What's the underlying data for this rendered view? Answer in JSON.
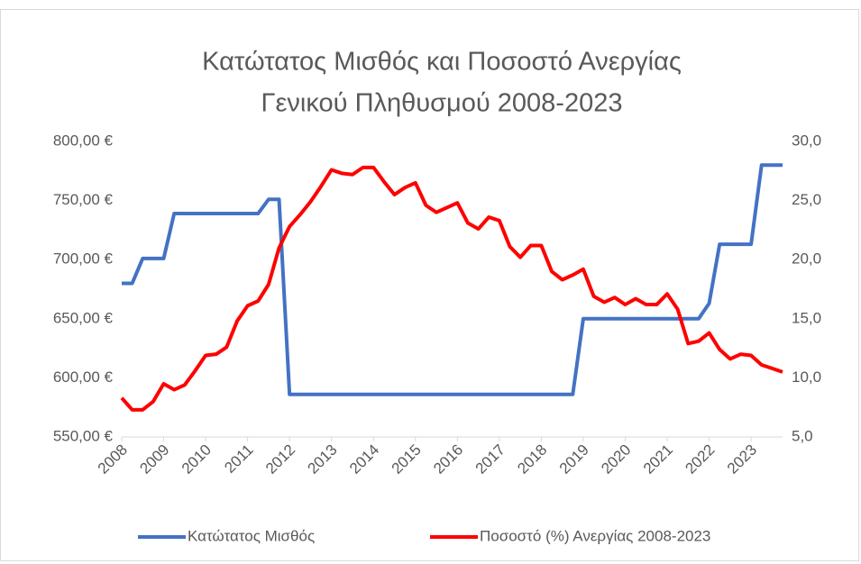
{
  "chart_data": {
    "type": "line",
    "title": [
      "Κατώτατος Μισθός και Ποσοστό Ανεργίας",
      "Γενικού Πληθυσμού 2008-2023"
    ],
    "x": [
      2008,
      2008.25,
      2008.5,
      2008.75,
      2009,
      2009.25,
      2009.5,
      2009.75,
      2010,
      2010.25,
      2010.5,
      2010.75,
      2011,
      2011.25,
      2011.5,
      2011.75,
      2012,
      2012.25,
      2012.5,
      2012.75,
      2013,
      2013.25,
      2013.5,
      2013.75,
      2014,
      2014.25,
      2014.5,
      2014.75,
      2015,
      2015.25,
      2015.5,
      2015.75,
      2016,
      2016.25,
      2016.5,
      2016.75,
      2017,
      2017.25,
      2017.5,
      2017.75,
      2018,
      2018.25,
      2018.5,
      2018.75,
      2019,
      2019.25,
      2019.5,
      2019.75,
      2020,
      2020.25,
      2020.5,
      2020.75,
      2021,
      2021.25,
      2021.5,
      2021.75,
      2022,
      2022.25,
      2022.5,
      2022.75,
      2023,
      2023.25,
      2023.5,
      2023.75
    ],
    "xlim": [
      2008,
      2023.75
    ],
    "xticks": [
      2008,
      2009,
      2010,
      2011,
      2012,
      2013,
      2014,
      2015,
      2016,
      2017,
      2018,
      2019,
      2020,
      2021,
      2022,
      2023
    ],
    "ylim": [
      550,
      800
    ],
    "yticks": [
      {
        "value": 550,
        "label": "550,00 €"
      },
      {
        "value": 600,
        "label": "600,00 €"
      },
      {
        "value": 650,
        "label": "650,00 €"
      },
      {
        "value": 700,
        "label": "700,00 €"
      },
      {
        "value": 750,
        "label": "750,00 €"
      },
      {
        "value": 800,
        "label": "800,00 €"
      }
    ],
    "y2lim": [
      5,
      30
    ],
    "y2ticks": [
      {
        "value": 5,
        "label": "5,0"
      },
      {
        "value": 10,
        "label": "10,0"
      },
      {
        "value": 15,
        "label": "15,0"
      },
      {
        "value": 20,
        "label": "20,0"
      },
      {
        "value": 25,
        "label": "25,0"
      },
      {
        "value": 30,
        "label": "30,0"
      }
    ],
    "grid": false,
    "legend": "bottom",
    "series": [
      {
        "name": "Κατώτατος Μισθός",
        "color": "#4472c4",
        "values": [
          680,
          680,
          701,
          701,
          701,
          739,
          739,
          739,
          739,
          739,
          739,
          739,
          739,
          739,
          751,
          751,
          586,
          586,
          586,
          586,
          586,
          586,
          586,
          586,
          586,
          586,
          586,
          586,
          586,
          586,
          586,
          586,
          586,
          586,
          586,
          586,
          586,
          586,
          586,
          586,
          586,
          586,
          586,
          586,
          650,
          650,
          650,
          650,
          650,
          650,
          650,
          650,
          650,
          650,
          650,
          650,
          663,
          713,
          713,
          713,
          713,
          780,
          780,
          780
        ]
      },
      {
        "name": "Ποσοστό (%) Ανεργίας 2008-2023",
        "color": "#ff0000",
        "axis": "y2",
        "values": [
          8.3,
          7.3,
          7.3,
          8.0,
          9.5,
          9.0,
          9.4,
          10.6,
          11.9,
          12.0,
          12.6,
          14.8,
          16.1,
          16.5,
          17.9,
          21.0,
          22.8,
          23.8,
          24.9,
          26.2,
          27.6,
          27.3,
          27.2,
          27.8,
          27.8,
          26.6,
          25.5,
          26.1,
          26.5,
          24.6,
          24.0,
          24.4,
          24.8,
          23.1,
          22.6,
          23.6,
          23.3,
          21.1,
          20.2,
          21.2,
          21.2,
          19.0,
          18.3,
          18.7,
          19.2,
          16.9,
          16.4,
          16.8,
          16.2,
          16.7,
          16.2,
          16.2,
          17.1,
          15.8,
          12.9,
          13.1,
          13.8,
          12.4,
          11.6,
          12.0,
          11.9,
          11.1,
          10.8,
          10.5
        ]
      }
    ]
  }
}
